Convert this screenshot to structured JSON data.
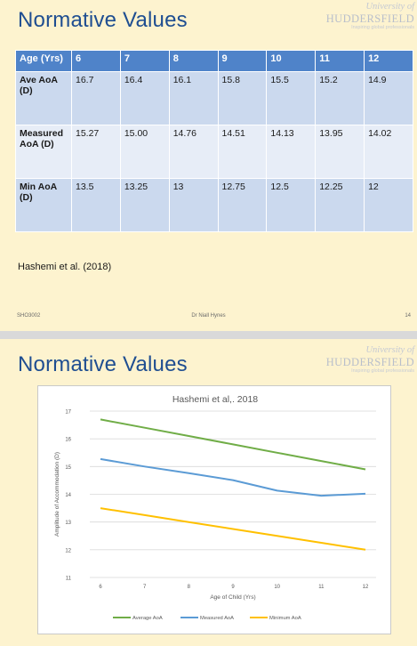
{
  "slide1": {
    "title": "Normative Values",
    "logo": {
      "top": "University of",
      "main": "HUDDERSFIELD",
      "tagline": "Inspiring global professionals"
    },
    "table": {
      "header": [
        "Age (Yrs)",
        "6",
        "7",
        "8",
        "9",
        "10",
        "11",
        "12"
      ],
      "rows": [
        {
          "label": "Ave AoA (D)",
          "values": [
            "16.7",
            "16.4",
            "16.1",
            "15.8",
            "15.5",
            "15.2",
            "14.9"
          ]
        },
        {
          "label": "Measured AoA (D)",
          "values": [
            "15.27",
            "15.00",
            "14.76",
            "14.51",
            "14.13",
            "13.95",
            "14.02"
          ]
        },
        {
          "label": "Min AoA (D)",
          "values": [
            "13.5",
            "13.25",
            "13",
            "12.75",
            "12.5",
            "12.25",
            "12"
          ]
        }
      ]
    },
    "reference": "Hashemi et al. (2018)",
    "footer": {
      "left": "SHO3002",
      "center": "Dr Niall Hynes",
      "right": "14"
    }
  },
  "slide2": {
    "title": "Normative Values",
    "logo": {
      "top": "University of",
      "main": "HUDDERSFIELD",
      "tagline": "Inspiring global professionals"
    }
  },
  "colors": {
    "title": "#1f4e91",
    "header": "#4f83c9",
    "row_dark": "#cbd9ee",
    "row_light": "#e7edf7",
    "slide_bg": "#fdf3cf"
  },
  "chart_data": {
    "type": "line",
    "title": "Hashemi et al,. 2018",
    "xlabel": "Age of Child (Yrs)",
    "ylabel": "Amplitude of Accommodation (D)",
    "x": [
      6,
      7,
      8,
      9,
      10,
      11,
      12
    ],
    "ylim": [
      11,
      17
    ],
    "yticks": [
      11,
      12,
      13,
      14,
      15,
      16,
      17
    ],
    "grid": true,
    "legend_position": "bottom",
    "series": [
      {
        "name": "Average AoA",
        "color": "#70ad47",
        "values": [
          16.7,
          16.4,
          16.1,
          15.8,
          15.5,
          15.2,
          14.9
        ]
      },
      {
        "name": "Measured AoA",
        "color": "#5b9bd5",
        "values": [
          15.27,
          15.0,
          14.76,
          14.51,
          14.13,
          13.95,
          14.02
        ]
      },
      {
        "name": "Minimum AoA",
        "color": "#ffc000",
        "values": [
          13.5,
          13.25,
          13,
          12.75,
          12.5,
          12.25,
          12
        ]
      }
    ]
  }
}
